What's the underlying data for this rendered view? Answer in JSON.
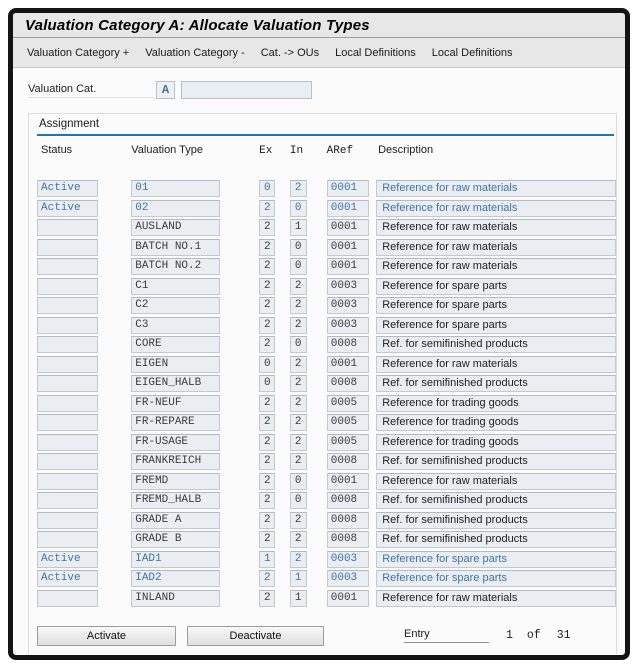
{
  "header": {
    "title": "Valuation Category A: Allocate Valuation Types"
  },
  "toolbar": {
    "items": [
      "Valuation Category +",
      "Valuation Category -",
      "Cat. -> OUs",
      "Local Definitions",
      "Local Definitions"
    ]
  },
  "valuation_cat": {
    "label": "Valuation Cat.",
    "value": "A",
    "input_value": ""
  },
  "assignment": {
    "title": "Assignment",
    "columns": [
      "Status",
      "Valuation Type",
      "Ex",
      "In",
      "ARef",
      "Description"
    ],
    "rows": [
      {
        "status": "Active",
        "type": "01",
        "ex": "0",
        "in": "2",
        "aref": "0001",
        "description": "Reference for raw materials",
        "active": true
      },
      {
        "status": "Active",
        "type": "02",
        "ex": "2",
        "in": "0",
        "aref": "0001",
        "description": "Reference for raw materials",
        "active": true
      },
      {
        "status": "",
        "type": "AUSLAND",
        "ex": "2",
        "in": "1",
        "aref": "0001",
        "description": "Reference for raw materials",
        "active": false
      },
      {
        "status": "",
        "type": "BATCH NO.1",
        "ex": "2",
        "in": "0",
        "aref": "0001",
        "description": "Reference for raw materials",
        "active": false
      },
      {
        "status": "",
        "type": "BATCH NO.2",
        "ex": "2",
        "in": "0",
        "aref": "0001",
        "description": "Reference for raw materials",
        "active": false
      },
      {
        "status": "",
        "type": "C1",
        "ex": "2",
        "in": "2",
        "aref": "0003",
        "description": "Reference for spare parts",
        "active": false
      },
      {
        "status": "",
        "type": "C2",
        "ex": "2",
        "in": "2",
        "aref": "0003",
        "description": "Reference for spare parts",
        "active": false
      },
      {
        "status": "",
        "type": "C3",
        "ex": "2",
        "in": "2",
        "aref": "0003",
        "description": "Reference for spare parts",
        "active": false
      },
      {
        "status": "",
        "type": "CORE",
        "ex": "2",
        "in": "0",
        "aref": "0008",
        "description": "Ref. for semifinished products",
        "active": false
      },
      {
        "status": "",
        "type": "EIGEN",
        "ex": "0",
        "in": "2",
        "aref": "0001",
        "description": "Reference for raw materials",
        "active": false
      },
      {
        "status": "",
        "type": "EIGEN_HALB",
        "ex": "0",
        "in": "2",
        "aref": "0008",
        "description": "Ref. for semifinished products",
        "active": false
      },
      {
        "status": "",
        "type": "FR-NEUF",
        "ex": "2",
        "in": "2",
        "aref": "0005",
        "description": "Reference for trading goods",
        "active": false
      },
      {
        "status": "",
        "type": "FR-REPARE",
        "ex": "2",
        "in": "2",
        "aref": "0005",
        "description": "Reference for trading goods",
        "active": false
      },
      {
        "status": "",
        "type": "FR-USAGE",
        "ex": "2",
        "in": "2",
        "aref": "0005",
        "description": "Reference for trading goods",
        "active": false
      },
      {
        "status": "",
        "type": "FRANKREICH",
        "ex": "2",
        "in": "2",
        "aref": "0008",
        "description": "Ref. for semifinished products",
        "active": false
      },
      {
        "status": "",
        "type": "FREMD",
        "ex": "2",
        "in": "0",
        "aref": "0001",
        "description": "Reference for raw materials",
        "active": false
      },
      {
        "status": "",
        "type": "FREMD_HALB",
        "ex": "2",
        "in": "0",
        "aref": "0008",
        "description": "Ref. for semifinished products",
        "active": false
      },
      {
        "status": "",
        "type": "GRADE A",
        "ex": "2",
        "in": "2",
        "aref": "0008",
        "description": "Ref. for semifinished products",
        "active": false
      },
      {
        "status": "",
        "type": "GRADE B",
        "ex": "2",
        "in": "2",
        "aref": "0008",
        "description": "Ref. for semifinished products",
        "active": false
      },
      {
        "status": "Active",
        "type": "IAD1",
        "ex": "1",
        "in": "2",
        "aref": "0003",
        "description": "Reference for spare parts",
        "active": true
      },
      {
        "status": "Active",
        "type": "IAD2",
        "ex": "2",
        "in": "1",
        "aref": "0003",
        "description": "Reference for spare parts",
        "active": true
      },
      {
        "status": "",
        "type": "INLAND",
        "ex": "2",
        "in": "1",
        "aref": "0001",
        "description": "Reference for raw materials",
        "active": false
      }
    ]
  },
  "footer": {
    "activate_label": "Activate",
    "deactivate_label": "Deactivate",
    "entry_label": "Entry",
    "entry_current": "1",
    "entry_of": "of",
    "entry_total": "31"
  },
  "colors": {
    "accent_blue_text": "#3d74a8",
    "assignment_line": "#1b74c0",
    "field_background": "#eaeef2",
    "bar_background": "#e7e7e7"
  }
}
